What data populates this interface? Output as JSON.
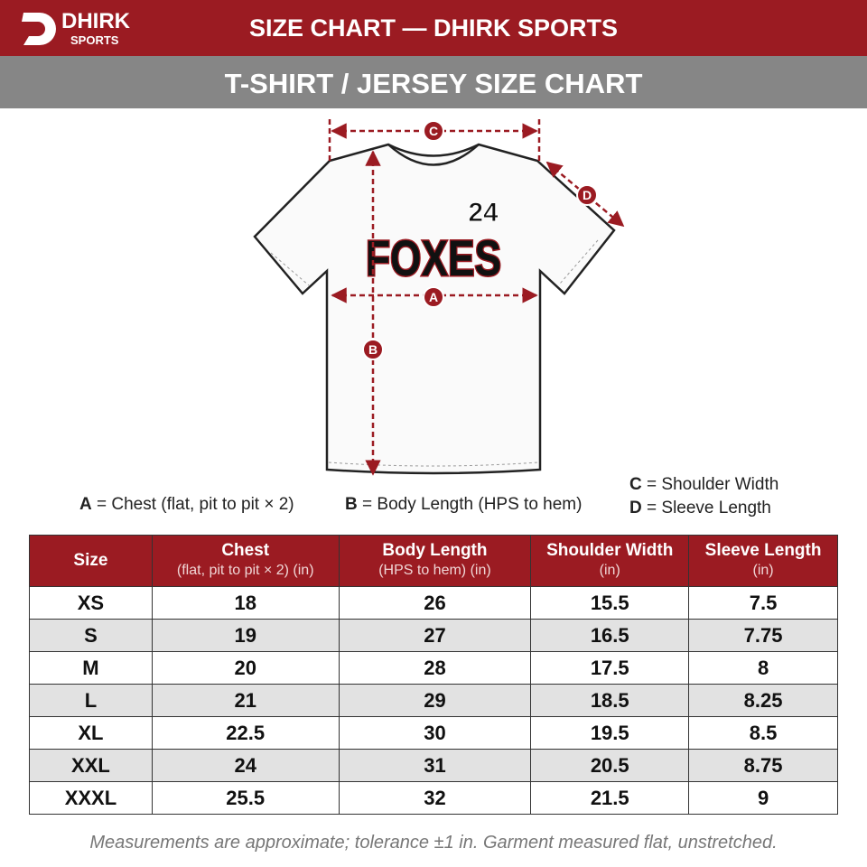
{
  "header": {
    "logo_name": "DHIRK",
    "logo_sub": "SPORTS",
    "title": "SIZE CHART — DHIRK SPORTS"
  },
  "subheader": "T-SHIRT / JERSEY SIZE CHART",
  "diagram": {
    "number": "24",
    "team": "FOXES",
    "markers": [
      "C",
      "D",
      "A",
      "B"
    ]
  },
  "legend": {
    "items": [
      {
        "key": "A",
        "text": "= Chest (flat, pit to pit × 2)"
      },
      {
        "key": "B",
        "text": "= Body Length (HPS to hem)"
      },
      {
        "key": "C",
        "text": "= Shoulder Width"
      },
      {
        "key": "D",
        "text": "= Sleeve Length"
      }
    ]
  },
  "table": {
    "columns": [
      {
        "title": "Size"
      },
      {
        "title": "Chest",
        "sub": "(flat, pit to pit × 2) (in)"
      },
      {
        "title": "Body Length",
        "sub": "(HPS to hem) (in)"
      },
      {
        "title": "Shoulder Width",
        "sub": "(in)"
      },
      {
        "title": "Sleeve Length",
        "sub": "(in)"
      }
    ],
    "rows": [
      [
        "XS",
        18,
        26,
        15.5,
        7.5
      ],
      [
        "S",
        19,
        27,
        16.5,
        7.75
      ],
      [
        "M",
        20,
        28,
        17.5,
        8
      ],
      [
        "L",
        21,
        29,
        18.5,
        8.25
      ],
      [
        "XL",
        22.5,
        30,
        19.5,
        8.5
      ],
      [
        "XXL",
        24,
        31,
        20.5,
        8.75
      ],
      [
        "XXXL",
        25.5,
        32,
        21.5,
        9
      ]
    ]
  },
  "footnote": "Measurements are approximate; tolerance ±1 in. Garment measured flat, unstretched."
}
